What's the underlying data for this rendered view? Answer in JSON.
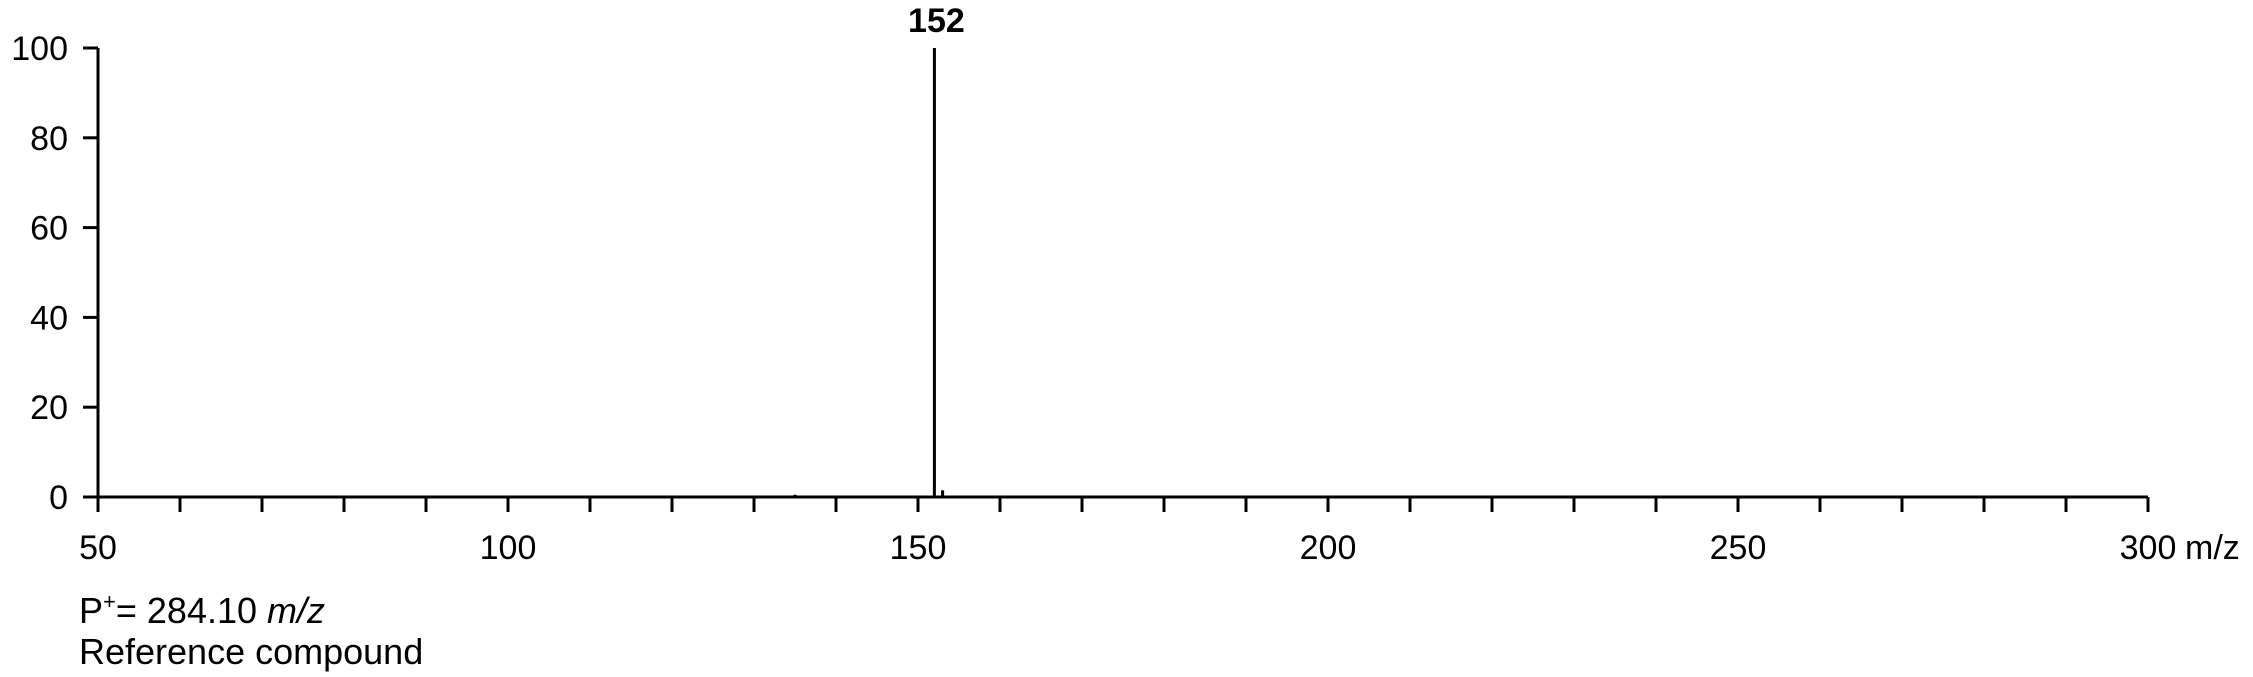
{
  "chart_data": {
    "type": "bar",
    "xlim": [
      50,
      300
    ],
    "ylim": [
      0,
      100
    ],
    "x_major_ticks": [
      50,
      100,
      150,
      200,
      250,
      300
    ],
    "x_minor_step": 10,
    "y_ticks": [
      0,
      20,
      40,
      60,
      80,
      100
    ],
    "x_tick_labels": [
      "50",
      "100",
      "150",
      "200",
      "250",
      "300"
    ],
    "y_tick_labels": [
      "0",
      "20",
      "40",
      "60",
      "80",
      "100"
    ],
    "xlabel": "m/z",
    "ylabel": "",
    "grid": false,
    "peaks": [
      {
        "mz": 135,
        "intensity": 0.5
      },
      {
        "mz": 152,
        "intensity": 100,
        "label": "152"
      },
      {
        "mz": 153,
        "intensity": 1.5
      }
    ]
  },
  "notes": {
    "precursor_prefix": "P",
    "precursor_sup": "+",
    "precursor_value": "= 284.10 ",
    "precursor_unit": "m/z",
    "caption": "Reference compound"
  },
  "colors": {
    "axis": "#000000",
    "peak": "#000000",
    "background": "#ffffff"
  }
}
